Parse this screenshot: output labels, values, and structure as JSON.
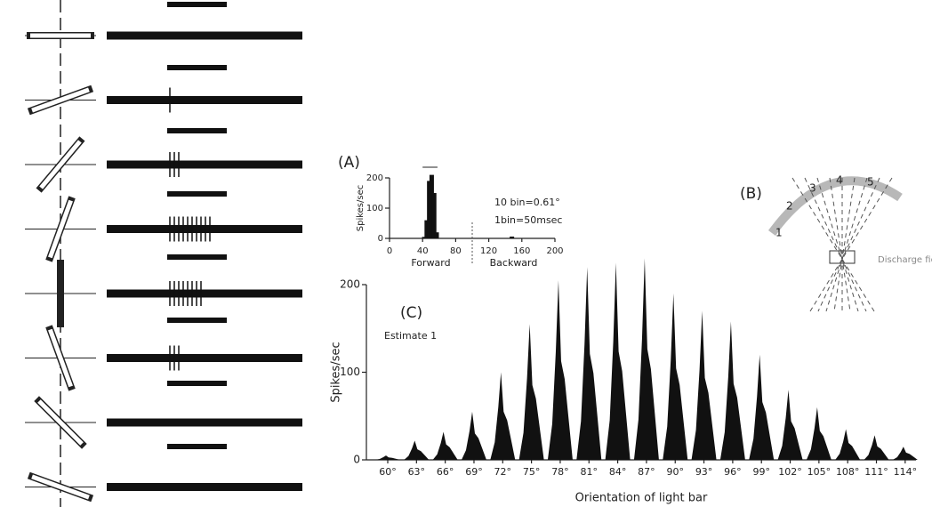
{
  "chart_data": [
    {
      "type": "bar",
      "label": "(A)",
      "y_label": "Spikes/sec",
      "x_labels": [
        "Forward",
        "Backward"
      ],
      "notes": [
        "10 bin=0.61°",
        "1bin=50msec"
      ],
      "x": [
        42,
        45,
        48,
        51,
        54,
        57,
        148
      ],
      "values": [
        5,
        60,
        190,
        210,
        150,
        20,
        6
      ],
      "xlim": [
        0,
        200
      ],
      "xticks": [
        0,
        40,
        80,
        120,
        160,
        200
      ],
      "ylim": [
        0,
        200
      ],
      "yticks": [
        0,
        100,
        200
      ],
      "color": "#111111"
    },
    {
      "type": "bar",
      "label": "(C)",
      "annotation": "Estimate 1",
      "y_label": "Spikes/sec",
      "x_label": "Orientation of light bar",
      "categories": [
        "60°",
        "63°",
        "66°",
        "69°",
        "72°",
        "75°",
        "78°",
        "81°",
        "84°",
        "87°",
        "90°",
        "93°",
        "96°",
        "99°",
        "102°",
        "105°",
        "108°",
        "111°",
        "114°"
      ],
      "values": [
        5,
        22,
        32,
        55,
        100,
        155,
        205,
        220,
        225,
        230,
        190,
        170,
        158,
        120,
        80,
        60,
        35,
        28,
        15
      ],
      "ylim": [
        0,
        200
      ],
      "yticks": [
        0,
        100,
        200
      ],
      "color": "#111111"
    }
  ],
  "diagram": {
    "label": "(B)",
    "positions": [
      "1",
      "2",
      "3",
      "4",
      "5"
    ],
    "field_label": "Discharge field"
  }
}
